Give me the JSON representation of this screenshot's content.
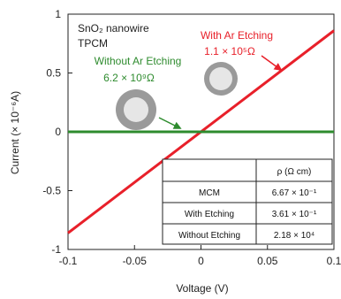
{
  "chart_data": {
    "type": "line",
    "xlabel": "Voltage (V)",
    "ylabel": "Current (× 10⁻⁶A)",
    "xlim": [
      -0.1,
      0.1
    ],
    "ylim": [
      -1,
      1
    ],
    "x_ticks": [
      -0.1,
      -0.05,
      0,
      0.05,
      0.1
    ],
    "x_tick_labels": [
      "-0.1",
      "-0.05",
      "0",
      "0.05",
      "0.1"
    ],
    "y_ticks": [
      -1,
      -0.5,
      0,
      0.5,
      1
    ],
    "y_tick_labels": [
      "-1",
      "-0.5",
      "0",
      "0.5",
      "1"
    ],
    "grid": false,
    "series": [
      {
        "name": "With Ar Etching",
        "color": "#e8202a",
        "x": [
          -0.1,
          0.1
        ],
        "y": [
          -0.86,
          0.86
        ]
      },
      {
        "name": "Without Ar Etching",
        "color": "#2e8b2e",
        "x": [
          -0.1,
          0.1
        ],
        "y": [
          0,
          0
        ]
      }
    ],
    "annotations": {
      "sample_line1": "SnO₂ nanowire",
      "sample_line2": "TPCM",
      "with_etch_label": "With Ar Etching",
      "with_etch_resistance": "1.1 × 10⁵Ω",
      "without_etch_label": "Without Ar Etching",
      "without_etch_resistance": "6.2 × 10⁹Ω"
    },
    "table": {
      "header": [
        "",
        "ρ (Ω cm)"
      ],
      "rows": [
        [
          "MCM",
          "6.67 × 10⁻¹"
        ],
        [
          "With Etching",
          "3.61 × 10⁻¹"
        ],
        [
          "Without Etching",
          "2.18 × 10⁴"
        ]
      ]
    }
  }
}
